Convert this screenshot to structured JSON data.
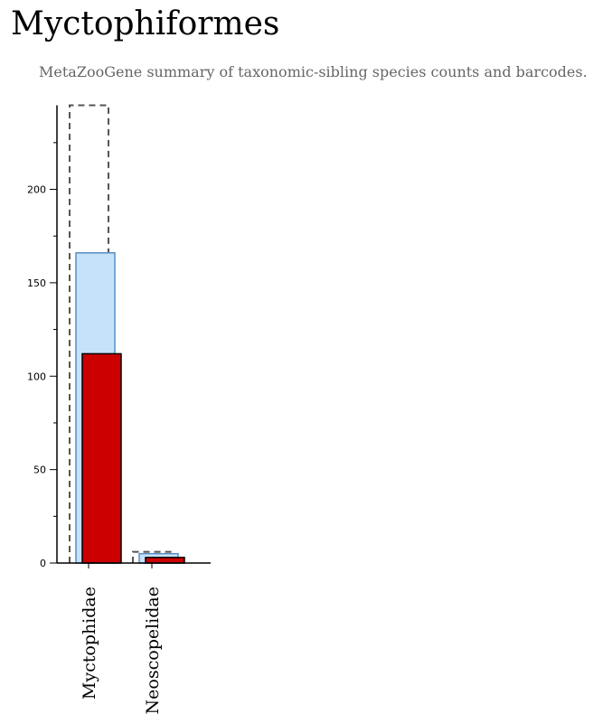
{
  "header": {
    "title": "Myctophiformes",
    "subtitle": "MetaZooGene summary of taxonomic-sibling species counts and barcodes."
  },
  "chart_data": {
    "type": "bar",
    "categories": [
      "Myctophidae",
      "Neoscopelidae"
    ],
    "series": [
      {
        "values": [
          245,
          6
        ],
        "color": "#555555",
        "style": "dashed-outline"
      },
      {
        "values": [
          166,
          5
        ],
        "color": "#c6e2fb",
        "stroke": "#5a8fc0"
      },
      {
        "values": [
          112,
          3
        ],
        "color": "#cc0000",
        "stroke": "#000000"
      }
    ],
    "ylim": [
      0,
      245
    ],
    "yticks": [
      0,
      50,
      100,
      150,
      200
    ],
    "minor_step": 25,
    "grid": false
  }
}
